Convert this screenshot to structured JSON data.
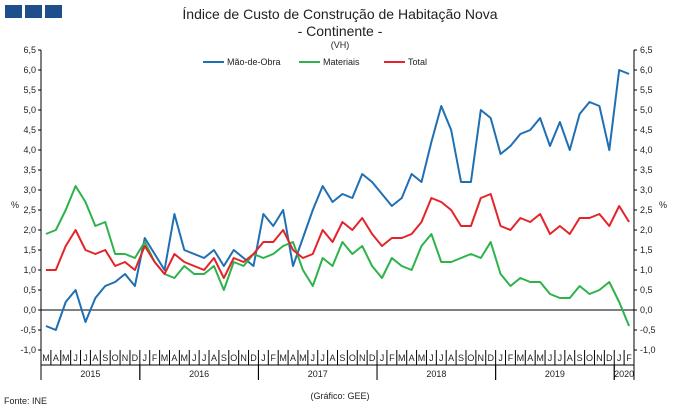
{
  "header": {
    "title_line1": "Índice de Custo de Construção de Habitação Nova",
    "title_line2": "- Continente -",
    "title_line3": "(VH)"
  },
  "footer": {
    "source": "Fonte: INE",
    "note": "(Gráfico: GEE)"
  },
  "chart_data": {
    "type": "line",
    "title": "Índice de Custo de Construção de Habitação Nova - Continente - (VH)",
    "ylabel": "%",
    "ylim": [
      -1.0,
      6.5
    ],
    "ytick_step": 0.5,
    "y_ticks": [
      "-1,0",
      "-0,5",
      "0,0",
      "0,5",
      "1,0",
      "1,5",
      "2,0",
      "2,5",
      "3,0",
      "3,5",
      "4,0",
      "4,5",
      "5,0",
      "5,5",
      "6,0",
      "6,5"
    ],
    "grid": false,
    "legend_position": "top-center",
    "month_labels": [
      "M",
      "A",
      "M",
      "J",
      "J",
      "A",
      "S",
      "O",
      "N",
      "D",
      "J",
      "F",
      "M",
      "A",
      "M",
      "J",
      "J",
      "A",
      "S",
      "O",
      "N",
      "D",
      "J",
      "F",
      "M",
      "A",
      "M",
      "J",
      "J",
      "A",
      "S",
      "O",
      "N",
      "D",
      "J",
      "F",
      "M",
      "A",
      "M",
      "J",
      "J",
      "A",
      "S",
      "O",
      "N",
      "D",
      "J",
      "F",
      "M",
      "A",
      "M",
      "J",
      "J",
      "A",
      "S",
      "O",
      "N",
      "D",
      "J",
      "F"
    ],
    "years": [
      {
        "label": "2015",
        "start": 0,
        "count": 10
      },
      {
        "label": "2016",
        "start": 10,
        "count": 12
      },
      {
        "label": "2017",
        "start": 22,
        "count": 12
      },
      {
        "label": "2018",
        "start": 34,
        "count": 12
      },
      {
        "label": "2019",
        "start": 46,
        "count": 12
      },
      {
        "label": "2020",
        "start": 58,
        "count": 2
      }
    ],
    "series": [
      {
        "name": "Mão-de-Obra",
        "color": "#1f6fb5",
        "values": [
          -0.4,
          -0.5,
          0.2,
          0.5,
          -0.3,
          0.3,
          0.6,
          0.7,
          0.9,
          0.6,
          1.8,
          1.4,
          1.0,
          2.4,
          1.5,
          1.4,
          1.3,
          1.5,
          1.1,
          1.5,
          1.3,
          1.1,
          2.4,
          2.1,
          2.5,
          1.1,
          1.8,
          2.5,
          3.1,
          2.7,
          2.9,
          2.8,
          3.4,
          3.2,
          2.9,
          2.6,
          2.8,
          3.4,
          3.2,
          4.2,
          5.1,
          4.5,
          3.2,
          3.2,
          5.0,
          4.8,
          3.9,
          4.1,
          4.4,
          4.5,
          4.8,
          4.1,
          4.7,
          4.0,
          4.9,
          5.2,
          5.1,
          4.0,
          6.0,
          5.9
        ]
      },
      {
        "name": "Materiais",
        "color": "#2db34a",
        "values": [
          1.9,
          2.0,
          2.5,
          3.1,
          2.7,
          2.1,
          2.2,
          1.4,
          1.4,
          1.3,
          1.7,
          1.2,
          0.9,
          0.8,
          1.1,
          0.9,
          0.9,
          1.1,
          0.5,
          1.2,
          1.1,
          1.4,
          1.3,
          1.4,
          1.6,
          1.7,
          1.0,
          0.6,
          1.3,
          1.1,
          1.7,
          1.4,
          1.6,
          1.1,
          0.8,
          1.3,
          1.1,
          1.0,
          1.6,
          1.9,
          1.2,
          1.2,
          1.3,
          1.4,
          1.3,
          1.7,
          0.9,
          0.6,
          0.8,
          0.7,
          0.7,
          0.4,
          0.3,
          0.3,
          0.6,
          0.4,
          0.5,
          0.7,
          0.2,
          -0.4
        ]
      },
      {
        "name": "Total",
        "color": "#e3252a",
        "values": [
          1.0,
          1.0,
          1.6,
          2.0,
          1.5,
          1.4,
          1.5,
          1.1,
          1.2,
          1.0,
          1.6,
          1.2,
          0.9,
          1.4,
          1.2,
          1.1,
          1.0,
          1.3,
          0.8,
          1.3,
          1.2,
          1.4,
          1.7,
          1.7,
          2.0,
          1.5,
          1.3,
          1.4,
          2.0,
          1.7,
          2.2,
          2.0,
          2.3,
          1.9,
          1.6,
          1.8,
          1.8,
          1.9,
          2.2,
          2.8,
          2.7,
          2.5,
          2.1,
          2.1,
          2.8,
          2.9,
          2.1,
          2.0,
          2.3,
          2.2,
          2.4,
          1.9,
          2.1,
          1.9,
          2.3,
          2.3,
          2.4,
          2.1,
          2.6,
          2.2
        ]
      }
    ]
  }
}
